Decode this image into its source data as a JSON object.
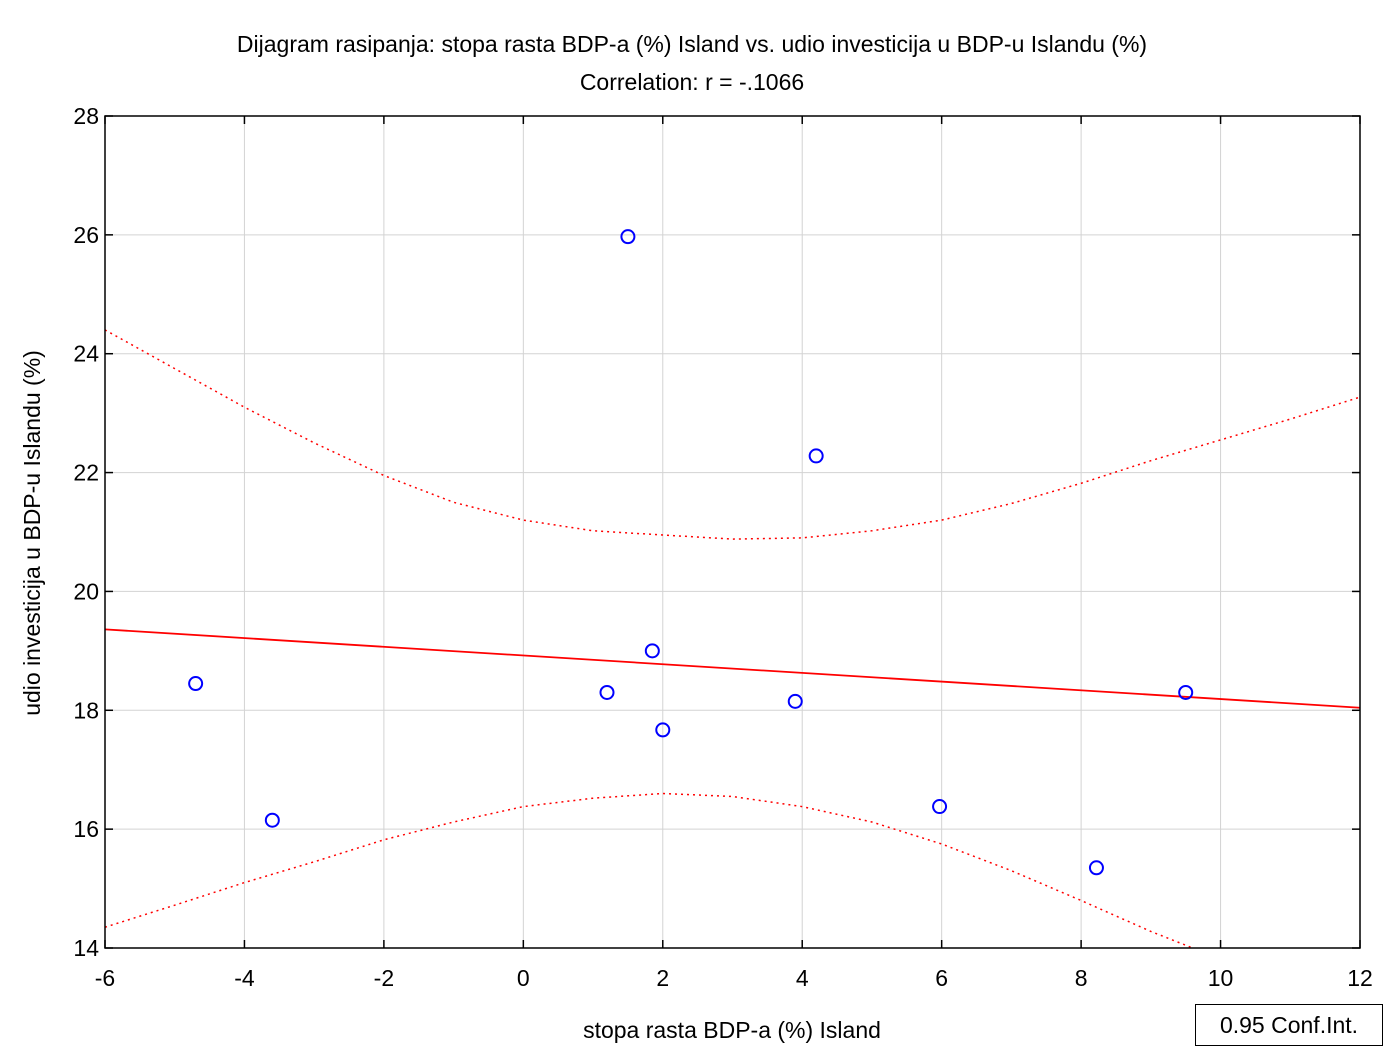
{
  "chart_data": {
    "type": "scatter",
    "title": "Dijagram rasipanja: stopa rasta BDP-a (%) Island vs. udio investicija u BDP-u Islandu (%)",
    "subtitle": "Correlation: r = -.1066",
    "xlabel": "stopa rasta BDP-a (%) Island",
    "ylabel": "udio investicija u BDP-u Islandu (%)",
    "xlim": [
      -6,
      12
    ],
    "ylim": [
      14,
      28
    ],
    "xticks": [
      -6,
      -4,
      -2,
      0,
      2,
      4,
      6,
      8,
      10,
      12
    ],
    "yticks": [
      14,
      16,
      18,
      20,
      22,
      24,
      26,
      28
    ],
    "grid": true,
    "legend": "0.95 Conf.Int.",
    "legend_position": "bottom-right",
    "colors": {
      "points": "#0000ff",
      "regression": "#ff0000",
      "conf_int": "#ff0000",
      "grid": "#d3d3d3"
    },
    "points": [
      {
        "x": -4.7,
        "y": 18.45
      },
      {
        "x": -3.6,
        "y": 16.15
      },
      {
        "x": 1.2,
        "y": 18.3
      },
      {
        "x": 1.5,
        "y": 25.97
      },
      {
        "x": 1.85,
        "y": 19.0
      },
      {
        "x": 2.0,
        "y": 17.67
      },
      {
        "x": 3.9,
        "y": 18.15
      },
      {
        "x": 4.2,
        "y": 22.28
      },
      {
        "x": 5.97,
        "y": 16.38
      },
      {
        "x": 8.22,
        "y": 15.35
      },
      {
        "x": 9.5,
        "y": 18.3
      }
    ],
    "regression": {
      "intercept": 18.922,
      "slope": -0.0733
    },
    "conf_int_upper": [
      {
        "x": -6,
        "y": 24.4
      },
      {
        "x": -5,
        "y": 23.75
      },
      {
        "x": -4,
        "y": 23.1
      },
      {
        "x": -3,
        "y": 22.5
      },
      {
        "x": -2,
        "y": 21.95
      },
      {
        "x": -1,
        "y": 21.5
      },
      {
        "x": 0,
        "y": 21.2
      },
      {
        "x": 1,
        "y": 21.02
      },
      {
        "x": 2,
        "y": 20.95
      },
      {
        "x": 3,
        "y": 20.88
      },
      {
        "x": 4,
        "y": 20.9
      },
      {
        "x": 5,
        "y": 21.02
      },
      {
        "x": 6,
        "y": 21.2
      },
      {
        "x": 7,
        "y": 21.48
      },
      {
        "x": 8,
        "y": 21.82
      },
      {
        "x": 9,
        "y": 22.2
      },
      {
        "x": 10,
        "y": 22.55
      },
      {
        "x": 11,
        "y": 22.9
      },
      {
        "x": 12,
        "y": 23.27
      }
    ],
    "conf_int_lower": [
      {
        "x": -6,
        "y": 14.35
      },
      {
        "x": -5,
        "y": 14.72
      },
      {
        "x": -4,
        "y": 15.1
      },
      {
        "x": -3,
        "y": 15.45
      },
      {
        "x": -2,
        "y": 15.82
      },
      {
        "x": -1,
        "y": 16.12
      },
      {
        "x": 0,
        "y": 16.38
      },
      {
        "x": 1,
        "y": 16.52
      },
      {
        "x": 2,
        "y": 16.6
      },
      {
        "x": 3,
        "y": 16.55
      },
      {
        "x": 4,
        "y": 16.38
      },
      {
        "x": 5,
        "y": 16.12
      },
      {
        "x": 6,
        "y": 15.75
      },
      {
        "x": 7,
        "y": 15.3
      },
      {
        "x": 8,
        "y": 14.8
      },
      {
        "x": 9,
        "y": 14.28
      },
      {
        "x": 9.6,
        "y": 14.0
      }
    ]
  }
}
